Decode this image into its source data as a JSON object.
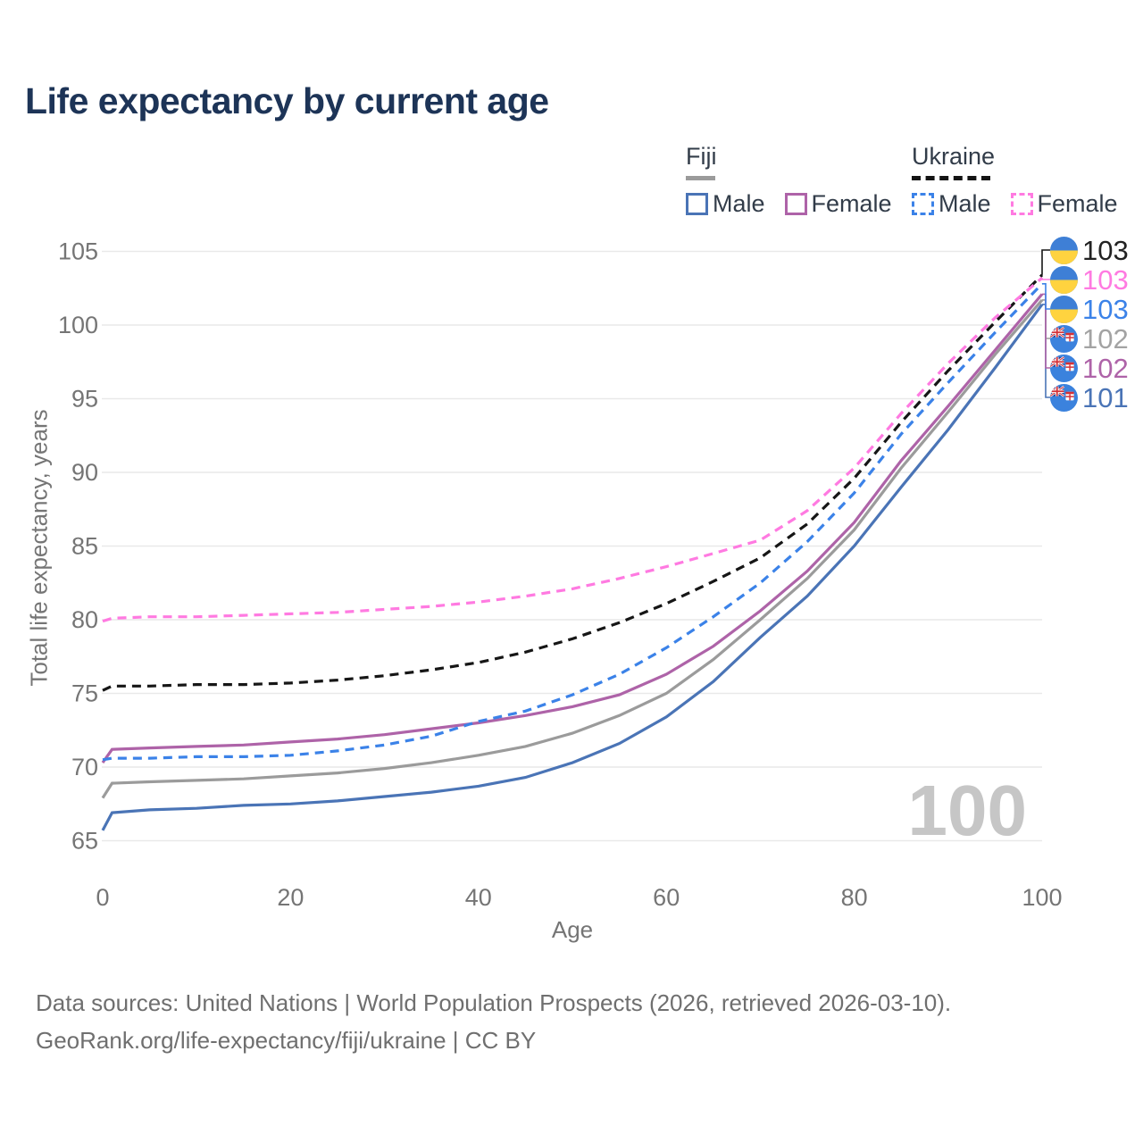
{
  "title": "Life expectancy by current age",
  "legend": {
    "fiji": {
      "label": "Fiji",
      "male": "Male",
      "female": "Female"
    },
    "ukraine": {
      "label": "Ukraine",
      "male": "Male",
      "female": "Female"
    }
  },
  "footer": {
    "line1": "Data sources: United Nations | World Population Prospects (2026, retrieved 2026-03-10).",
    "line2": "GeoRank.org/life-expectancy/fiji/ukraine | CC BY"
  },
  "chart_data": {
    "type": "line",
    "title": "Life expectancy by current age",
    "xlabel": "Age",
    "ylabel": "Total life expectancy, years",
    "xlim": [
      0,
      100
    ],
    "ylim": [
      65,
      105
    ],
    "x_ticks": [
      0,
      20,
      40,
      60,
      80,
      100
    ],
    "y_ticks": [
      65,
      70,
      75,
      80,
      85,
      90,
      95,
      100,
      105
    ],
    "grid": "horizontal",
    "legend_position": "top-right",
    "age_indicator": "100",
    "ages": [
      0,
      1,
      5,
      10,
      15,
      20,
      25,
      30,
      35,
      40,
      45,
      50,
      55,
      60,
      65,
      70,
      75,
      80,
      85,
      90,
      95,
      100
    ],
    "series": [
      {
        "id": "fiji-male",
        "country": "Fiji",
        "sex": "Male",
        "style": "solid",
        "color": "#4a74b6",
        "values": [
          65.7,
          66.9,
          67.1,
          67.2,
          67.4,
          67.5,
          67.7,
          68.0,
          68.3,
          68.7,
          69.3,
          70.3,
          71.6,
          73.4,
          75.8,
          78.8,
          81.6,
          85.0,
          89.0,
          92.9,
          97.1,
          101.4
        ],
        "end_label": "101",
        "label_color": "#4a74b6",
        "flag": "fiji",
        "label_row": 5
      },
      {
        "id": "fiji-total",
        "country": "Fiji",
        "sex": "Both sexes",
        "style": "solid",
        "color": "#9b9b9b",
        "values": [
          67.9,
          68.9,
          69.0,
          69.1,
          69.2,
          69.4,
          69.6,
          69.9,
          70.3,
          70.8,
          71.4,
          72.3,
          73.5,
          75.0,
          77.3,
          80.0,
          82.8,
          86.1,
          90.3,
          94.1,
          98.0,
          101.7
        ],
        "end_label": "102",
        "label_color": "#a3a3a3",
        "flag": "fiji",
        "label_row": 3
      },
      {
        "id": "fiji-female",
        "country": "Fiji",
        "sex": "Female",
        "style": "solid",
        "color": "#ae63a8",
        "values": [
          70.3,
          71.2,
          71.3,
          71.4,
          71.5,
          71.7,
          71.9,
          72.2,
          72.6,
          73.0,
          73.5,
          74.1,
          74.9,
          76.3,
          78.2,
          80.6,
          83.3,
          86.6,
          90.8,
          94.5,
          98.3,
          102.1
        ],
        "end_label": "102",
        "label_color": "#ae63a8",
        "flag": "fiji",
        "label_row": 4
      },
      {
        "id": "ukraine-male",
        "country": "Ukraine",
        "sex": "Male",
        "style": "dashed",
        "color": "#3b82e8",
        "values": [
          70.5,
          70.6,
          70.6,
          70.7,
          70.7,
          70.8,
          71.1,
          71.5,
          72.1,
          73.1,
          73.8,
          74.9,
          76.3,
          78.1,
          80.2,
          82.5,
          85.3,
          88.6,
          92.6,
          96.1,
          99.5,
          102.8
        ],
        "end_label": "103",
        "label_color": "#3b82e8",
        "flag": "ukraine",
        "label_row": 2
      },
      {
        "id": "ukraine-total",
        "country": "Ukraine",
        "sex": "Both sexes",
        "style": "dashed",
        "color": "#161616",
        "values": [
          75.2,
          75.5,
          75.5,
          75.6,
          75.6,
          75.7,
          75.9,
          76.2,
          76.6,
          77.1,
          77.8,
          78.7,
          79.8,
          81.1,
          82.6,
          84.2,
          86.5,
          89.6,
          93.4,
          96.9,
          100.2,
          103.4
        ],
        "end_label": "103",
        "label_color": "#222222",
        "flag": "ukraine",
        "label_row": 0
      },
      {
        "id": "ukraine-female",
        "country": "Ukraine",
        "sex": "Female",
        "style": "dashed",
        "color": "#ff7ae1",
        "values": [
          79.9,
          80.1,
          80.2,
          80.2,
          80.3,
          80.4,
          80.5,
          80.7,
          80.9,
          81.2,
          81.6,
          82.1,
          82.8,
          83.6,
          84.5,
          85.4,
          87.4,
          90.3,
          94.0,
          97.4,
          100.5,
          103.2
        ],
        "end_label": "103",
        "label_color": "#ff7ae1",
        "flag": "ukraine",
        "label_row": 1
      }
    ]
  }
}
